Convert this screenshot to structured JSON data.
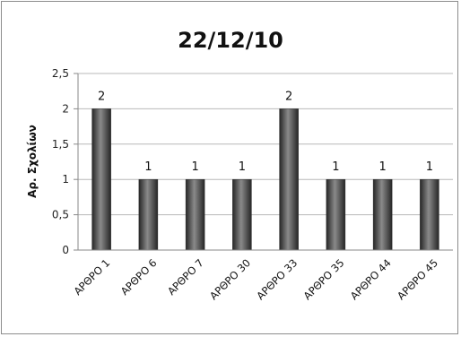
{
  "chart_data": {
    "type": "bar",
    "title": "22/12/10",
    "xlabel": "",
    "ylabel": "Αρ. Σχολίων",
    "categories": [
      "ΑΡΘΡΟ 1",
      "ΑΡΘΡΟ 6",
      "ΑΡΘΡΟ 7",
      "ΑΡΘΡΟ 30",
      "ΑΡΘΡΟ 33",
      "ΑΡΘΡΟ 35",
      "ΑΡΘΡΟ 44",
      "ΑΡΘΡΟ 45"
    ],
    "values": [
      2,
      1,
      1,
      1,
      2,
      1,
      1,
      1
    ],
    "data_labels": [
      "2",
      "1",
      "1",
      "1",
      "2",
      "1",
      "1",
      "1"
    ],
    "ylim": [
      0,
      2.5
    ],
    "yticks": [
      0,
      0.5,
      1,
      1.5,
      2,
      2.5
    ],
    "ytick_labels": [
      "0",
      "0,5",
      "1",
      "1,5",
      "2",
      "2,5"
    ],
    "grid": true,
    "legend": "none",
    "bar_color": "#3f3f3f",
    "bar_highlight": "#8a8a8a",
    "grid_color": "#b8b8b8"
  }
}
